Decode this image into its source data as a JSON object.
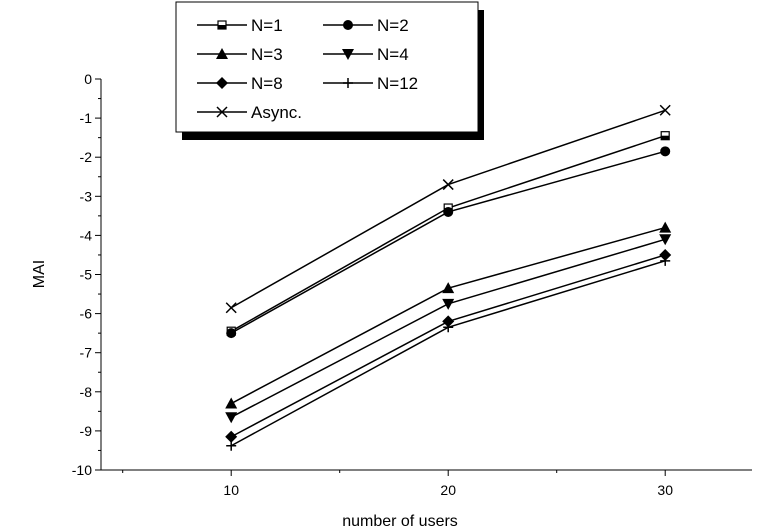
{
  "chart_data": {
    "type": "line",
    "xlabel": "number of users",
    "ylabel": "MAI",
    "x": [
      10,
      20,
      30
    ],
    "xlim": [
      4,
      34
    ],
    "ylim": [
      -10,
      0
    ],
    "xticks": [
      "10",
      "20",
      "30"
    ],
    "yticks": [
      "0",
      "-1",
      "-2",
      "-3",
      "-4",
      "-5",
      "-6",
      "-7",
      "-8",
      "-9",
      "-10"
    ],
    "legend_position": "top-left",
    "grid": false,
    "series": [
      {
        "name": "N=1",
        "marker": "half-filled-square",
        "values": [
          -6.45,
          -3.3,
          -1.45
        ]
      },
      {
        "name": "N=2",
        "marker": "circle",
        "values": [
          -6.5,
          -3.4,
          -1.85
        ]
      },
      {
        "name": "N=3",
        "marker": "triangle-up",
        "values": [
          -8.3,
          -5.35,
          -3.8
        ]
      },
      {
        "name": "N=4",
        "marker": "triangle-down",
        "values": [
          -8.65,
          -5.75,
          -4.1
        ]
      },
      {
        "name": "N=8",
        "marker": "diamond",
        "values": [
          -9.15,
          -6.2,
          -4.5
        ]
      },
      {
        "name": "N=12",
        "marker": "plus",
        "values": [
          -9.38,
          -6.35,
          -4.65
        ]
      },
      {
        "name": "Async.",
        "marker": "x",
        "values": [
          -5.85,
          -2.7,
          -0.8
        ]
      }
    ]
  }
}
